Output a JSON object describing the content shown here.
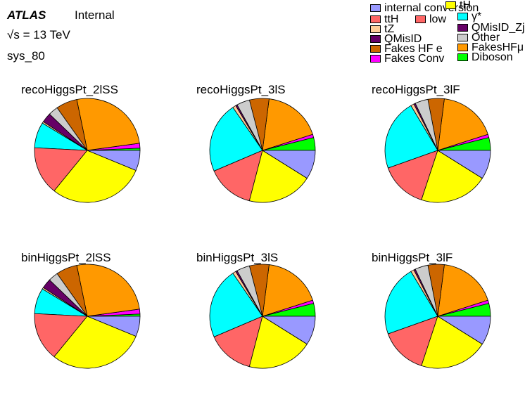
{
  "header": {
    "atlas": "ATLAS",
    "internal": "Internal",
    "energy_sqrt": "√s",
    "energy_value": "= 13 TeV",
    "sys": "sys_80"
  },
  "legend": [
    {
      "label": "internal conversion",
      "color": "#9999ff"
    },
    {
      "label": "tH",
      "color": "#ffff00"
    },
    {
      "label": "ttH",
      "color": "#ff6666"
    },
    {
      "label": "low",
      "color": "#ff6666"
    },
    {
      "label": "γ*",
      "color": "#00ffff"
    },
    {
      "label": "tZ",
      "color": "#ffcc99"
    },
    {
      "label": "QMisID_Zjets",
      "color": "#660066"
    },
    {
      "label": "QMisID",
      "color": "#660066"
    },
    {
      "label": "Other",
      "color": "#cccccc"
    },
    {
      "label": "Fakes HF e",
      "color": "#cc6600"
    },
    {
      "label": "FakesHFμ",
      "color": "#ff9900"
    },
    {
      "label": "Fakes Conv",
      "color": "#ff00ff"
    },
    {
      "label": "Diboson",
      "color": "#00ff00"
    }
  ],
  "chart_data": [
    {
      "type": "pie",
      "title": "recoHiggsPt_2lSS",
      "slices": [
        {
          "name": "Diboson",
          "value": 0.7,
          "color": "#00ff00"
        },
        {
          "name": "Fakes Conv",
          "value": 1.5,
          "color": "#ff00ff"
        },
        {
          "name": "FakesHFμ",
          "value": 26.0,
          "color": "#ff9900"
        },
        {
          "name": "Fakes HF e",
          "value": 6.5,
          "color": "#cc6600"
        },
        {
          "name": "Other",
          "value": 3.0,
          "color": "#cccccc"
        },
        {
          "name": "QMisID",
          "value": 3.0,
          "color": "#660066"
        },
        {
          "name": "tZ",
          "value": 0.5,
          "color": "#ffcc99"
        },
        {
          "name": "γ*",
          "value": 8.0,
          "color": "#00ffff"
        },
        {
          "name": "ttH",
          "value": 15.0,
          "color": "#ff6666"
        },
        {
          "name": "tH",
          "value": 29.5,
          "color": "#ffff00"
        },
        {
          "name": "internal conversion",
          "value": 6.3,
          "color": "#9999ff"
        }
      ]
    },
    {
      "type": "pie",
      "title": "recoHiggsPt_3lS",
      "slices": [
        {
          "name": "Diboson",
          "value": 4.0,
          "color": "#00ff00"
        },
        {
          "name": "Fakes Conv",
          "value": 1.0,
          "color": "#ff00ff"
        },
        {
          "name": "FakesHFμ",
          "value": 18.0,
          "color": "#ff9900"
        },
        {
          "name": "Fakes HF e",
          "value": 6.0,
          "color": "#cc6600"
        },
        {
          "name": "Other",
          "value": 4.0,
          "color": "#cccccc"
        },
        {
          "name": "QMisID",
          "value": 0.5,
          "color": "#660066"
        },
        {
          "name": "tZ",
          "value": 1.0,
          "color": "#ffcc99"
        },
        {
          "name": "γ*",
          "value": 22.0,
          "color": "#00ffff"
        },
        {
          "name": "ttH",
          "value": 14.5,
          "color": "#ff6666"
        },
        {
          "name": "tH",
          "value": 20.0,
          "color": "#ffff00"
        },
        {
          "name": "internal conversion",
          "value": 9.0,
          "color": "#9999ff"
        }
      ]
    },
    {
      "type": "pie",
      "title": "recoHiggsPt_3lF",
      "slices": [
        {
          "name": "Diboson",
          "value": 4.0,
          "color": "#00ff00"
        },
        {
          "name": "Fakes Conv",
          "value": 1.0,
          "color": "#ff00ff"
        },
        {
          "name": "FakesHFμ",
          "value": 18.0,
          "color": "#ff9900"
        },
        {
          "name": "Fakes HF e",
          "value": 5.0,
          "color": "#cc6600"
        },
        {
          "name": "Other",
          "value": 4.0,
          "color": "#cccccc"
        },
        {
          "name": "QMisID",
          "value": 0.5,
          "color": "#660066"
        },
        {
          "name": "tZ",
          "value": 1.0,
          "color": "#ffcc99"
        },
        {
          "name": "γ*",
          "value": 22.0,
          "color": "#00ffff"
        },
        {
          "name": "ttH",
          "value": 14.5,
          "color": "#ff6666"
        },
        {
          "name": "tH",
          "value": 21.0,
          "color": "#ffff00"
        },
        {
          "name": "internal conversion",
          "value": 9.0,
          "color": "#9999ff"
        }
      ]
    },
    {
      "type": "pie",
      "title": "binHiggsPt_2lSS",
      "slices": [
        {
          "name": "Diboson",
          "value": 0.7,
          "color": "#00ff00"
        },
        {
          "name": "Fakes Conv",
          "value": 1.5,
          "color": "#ff00ff"
        },
        {
          "name": "FakesHFμ",
          "value": 26.0,
          "color": "#ff9900"
        },
        {
          "name": "Fakes HF e",
          "value": 6.5,
          "color": "#cc6600"
        },
        {
          "name": "Other",
          "value": 3.0,
          "color": "#cccccc"
        },
        {
          "name": "QMisID",
          "value": 3.0,
          "color": "#660066"
        },
        {
          "name": "tZ",
          "value": 0.5,
          "color": "#ffcc99"
        },
        {
          "name": "γ*",
          "value": 8.0,
          "color": "#00ffff"
        },
        {
          "name": "ttH",
          "value": 15.0,
          "color": "#ff6666"
        },
        {
          "name": "tH",
          "value": 29.5,
          "color": "#ffff00"
        },
        {
          "name": "internal conversion",
          "value": 6.3,
          "color": "#9999ff"
        }
      ]
    },
    {
      "type": "pie",
      "title": "binHiggsPt_3lS",
      "slices": [
        {
          "name": "Diboson",
          "value": 4.0,
          "color": "#00ff00"
        },
        {
          "name": "Fakes Conv",
          "value": 1.0,
          "color": "#ff00ff"
        },
        {
          "name": "FakesHFμ",
          "value": 18.0,
          "color": "#ff9900"
        },
        {
          "name": "Fakes HF e",
          "value": 6.0,
          "color": "#cc6600"
        },
        {
          "name": "Other",
          "value": 4.0,
          "color": "#cccccc"
        },
        {
          "name": "QMisID",
          "value": 0.5,
          "color": "#660066"
        },
        {
          "name": "tZ",
          "value": 1.0,
          "color": "#ffcc99"
        },
        {
          "name": "γ*",
          "value": 22.0,
          "color": "#00ffff"
        },
        {
          "name": "ttH",
          "value": 14.5,
          "color": "#ff6666"
        },
        {
          "name": "tH",
          "value": 20.0,
          "color": "#ffff00"
        },
        {
          "name": "internal conversion",
          "value": 9.0,
          "color": "#9999ff"
        }
      ]
    },
    {
      "type": "pie",
      "title": "binHiggsPt_3lF",
      "slices": [
        {
          "name": "Diboson",
          "value": 4.0,
          "color": "#00ff00"
        },
        {
          "name": "Fakes Conv",
          "value": 1.0,
          "color": "#ff00ff"
        },
        {
          "name": "FakesHFμ",
          "value": 18.0,
          "color": "#ff9900"
        },
        {
          "name": "Fakes HF e",
          "value": 5.0,
          "color": "#cc6600"
        },
        {
          "name": "Other",
          "value": 4.0,
          "color": "#cccccc"
        },
        {
          "name": "QMisID",
          "value": 0.5,
          "color": "#660066"
        },
        {
          "name": "tZ",
          "value": 1.0,
          "color": "#ffcc99"
        },
        {
          "name": "γ*",
          "value": 22.0,
          "color": "#00ffff"
        },
        {
          "name": "ttH",
          "value": 14.5,
          "color": "#ff6666"
        },
        {
          "name": "tH",
          "value": 21.0,
          "color": "#ffff00"
        },
        {
          "name": "internal conversion",
          "value": 9.0,
          "color": "#9999ff"
        }
      ]
    }
  ]
}
